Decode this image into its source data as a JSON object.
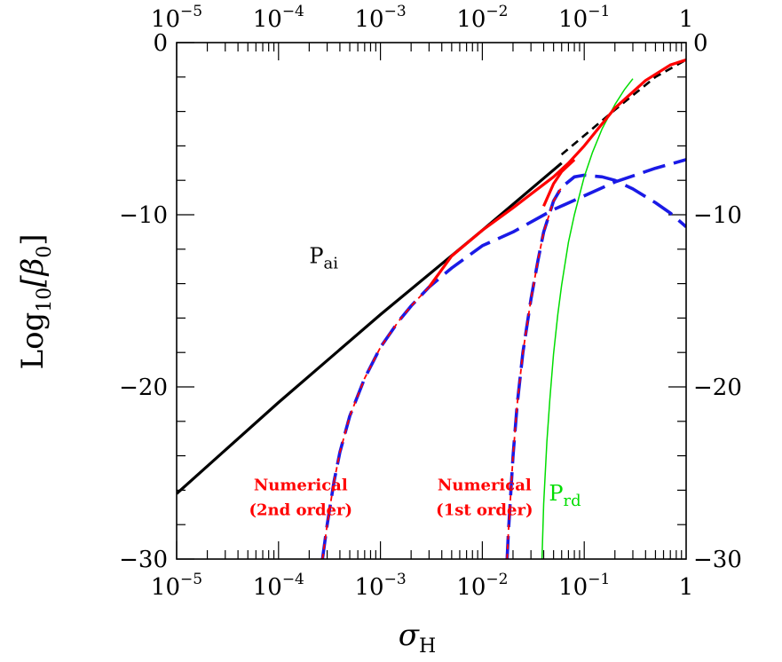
{
  "chart_data": {
    "type": "line",
    "xlabel": "σ",
    "xlabel_sub": "H",
    "ylabel": "Log",
    "ylabel_sub": "10",
    "ylabel_arg": "[β",
    "ylabel_arg_sub": "0",
    "ylabel_close": "]",
    "x_scale": "log",
    "xlim": [
      1e-05,
      1
    ],
    "ylim": [
      -30,
      0
    ],
    "x_ticks": [
      {
        "value": 1e-05,
        "base": "10",
        "exp": "−5"
      },
      {
        "value": 0.0001,
        "base": "10",
        "exp": "−4"
      },
      {
        "value": 0.001,
        "base": "10",
        "exp": "−3"
      },
      {
        "value": 0.01,
        "base": "10",
        "exp": "−2"
      },
      {
        "value": 0.1,
        "base": "10",
        "exp": "−1"
      },
      {
        "value": 1,
        "base": "1",
        "exp": ""
      }
    ],
    "y_ticks": [
      {
        "value": 0,
        "label": "0"
      },
      {
        "value": -10,
        "label": "−10"
      },
      {
        "value": -20,
        "label": "−20"
      },
      {
        "value": -30,
        "label": "−30"
      }
    ],
    "colors": {
      "black": "#000000",
      "red": "#ff0000",
      "blue": "#1a1ae6",
      "green": "#00dd00"
    },
    "series": [
      {
        "id": "pai_solid",
        "color": "#000000",
        "style": "solid",
        "x": [
          1e-05,
          0.0001,
          0.001,
          0.01,
          0.06
        ],
        "y": [
          -26.2,
          -20.9,
          -15.8,
          -10.9,
          -7.0
        ]
      },
      {
        "id": "pai_dashed",
        "color": "#000000",
        "style": "dashed",
        "x": [
          0.06,
          0.1,
          0.2,
          0.5,
          1.0
        ],
        "y": [
          -6.5,
          -5.4,
          -3.9,
          -2.0,
          -1.0
        ]
      },
      {
        "id": "blue_2nd",
        "color": "#1a1ae6",
        "style": "dashed",
        "x": [
          0.00027,
          0.0003,
          0.00035,
          0.0004,
          0.0005,
          0.0007,
          0.001,
          0.0015,
          0.002,
          0.003,
          0.005,
          0.01,
          0.02,
          0.05,
          0.1,
          0.2,
          0.5,
          1.0
        ],
        "y": [
          -30.0,
          -28.0,
          -25.5,
          -23.8,
          -21.7,
          -19.5,
          -17.7,
          -16.2,
          -15.3,
          -14.2,
          -13.1,
          -11.8,
          -11.0,
          -9.7,
          -8.9,
          -8.1,
          -7.3,
          -6.8
        ]
      },
      {
        "id": "red_2nd",
        "color": "#ff0000",
        "style": "dashed",
        "x": [
          0.00027,
          0.0003,
          0.00035,
          0.0004,
          0.0005,
          0.0007,
          0.001,
          0.0015,
          0.002,
          0.003
        ],
        "y": [
          -30.0,
          -28.0,
          -25.5,
          -23.8,
          -21.7,
          -19.5,
          -17.7,
          -16.2,
          -15.3,
          -14.2
        ]
      },
      {
        "id": "red_solid",
        "color": "#ff0000",
        "style": "solid",
        "x": [
          0.003,
          0.005,
          0.01,
          0.02,
          0.03,
          0.05,
          0.07,
          0.1,
          0.2,
          0.4,
          0.7,
          1.0
        ],
        "y": [
          -14.2,
          -12.4,
          -10.9,
          -9.6,
          -8.8,
          -7.8,
          -7.0,
          -6.0,
          -3.8,
          -2.2,
          -1.3,
          -1.0
        ]
      },
      {
        "id": "blue_1st",
        "color": "#1a1ae6",
        "style": "dashed",
        "x": [
          0.0175,
          0.018,
          0.019,
          0.02,
          0.022,
          0.025,
          0.03,
          0.035,
          0.04,
          0.05,
          0.06,
          0.08,
          0.1,
          0.15,
          0.2,
          0.3,
          0.5,
          0.7,
          1.0
        ],
        "y": [
          -30.0,
          -28.5,
          -26.2,
          -24.0,
          -21.0,
          -18.0,
          -14.9,
          -12.7,
          -11.0,
          -9.2,
          -8.4,
          -7.8,
          -7.7,
          -7.8,
          -8.0,
          -8.5,
          -9.3,
          -9.9,
          -10.7
        ]
      },
      {
        "id": "red_1st",
        "color": "#ff0000",
        "style": "dashed",
        "x": [
          0.0175,
          0.018,
          0.019,
          0.02,
          0.022,
          0.025,
          0.03,
          0.035,
          0.04,
          0.05,
          0.06
        ],
        "y": [
          -30.0,
          -28.5,
          -26.2,
          -24.0,
          -21.0,
          -18.0,
          -14.9,
          -12.7,
          -11.0,
          -9.2,
          -8.4
        ]
      },
      {
        "id": "red_1st_top",
        "color": "#ff0000",
        "style": "solid",
        "x": [
          0.04,
          0.05,
          0.06,
          0.08
        ],
        "y": [
          -9.5,
          -8.2,
          -7.5,
          -6.8
        ]
      },
      {
        "id": "prd",
        "color": "#00dd00",
        "style": "solid",
        "x": [
          0.0385,
          0.04,
          0.043,
          0.046,
          0.05,
          0.055,
          0.06,
          0.07,
          0.08,
          0.1,
          0.12,
          0.15,
          0.2,
          0.25,
          0.3
        ],
        "y": [
          -30.0,
          -26.8,
          -23.2,
          -20.7,
          -18.1,
          -15.8,
          -14.1,
          -11.6,
          -10.0,
          -7.8,
          -6.4,
          -5.0,
          -3.6,
          -2.7,
          -2.1
        ]
      }
    ],
    "annotations": [
      {
        "id": "pai",
        "text": "P",
        "sub": "ai",
        "color": "#000000",
        "x": 0.0002,
        "y": -12.8
      },
      {
        "id": "prd",
        "text": "P",
        "sub": "rd",
        "color": "#00dd00",
        "x": 0.045,
        "y": -26.6
      },
      {
        "id": "num2",
        "line1": "Numerical",
        "line2": "(2nd order)",
        "color": "#ff0000",
        "x": 0.000165,
        "y": -26.0
      },
      {
        "id": "num1",
        "line1": "Numerical",
        "line2": "(1st order)",
        "color": "#ff0000",
        "x": 0.0105,
        "y": -26.0
      }
    ]
  }
}
